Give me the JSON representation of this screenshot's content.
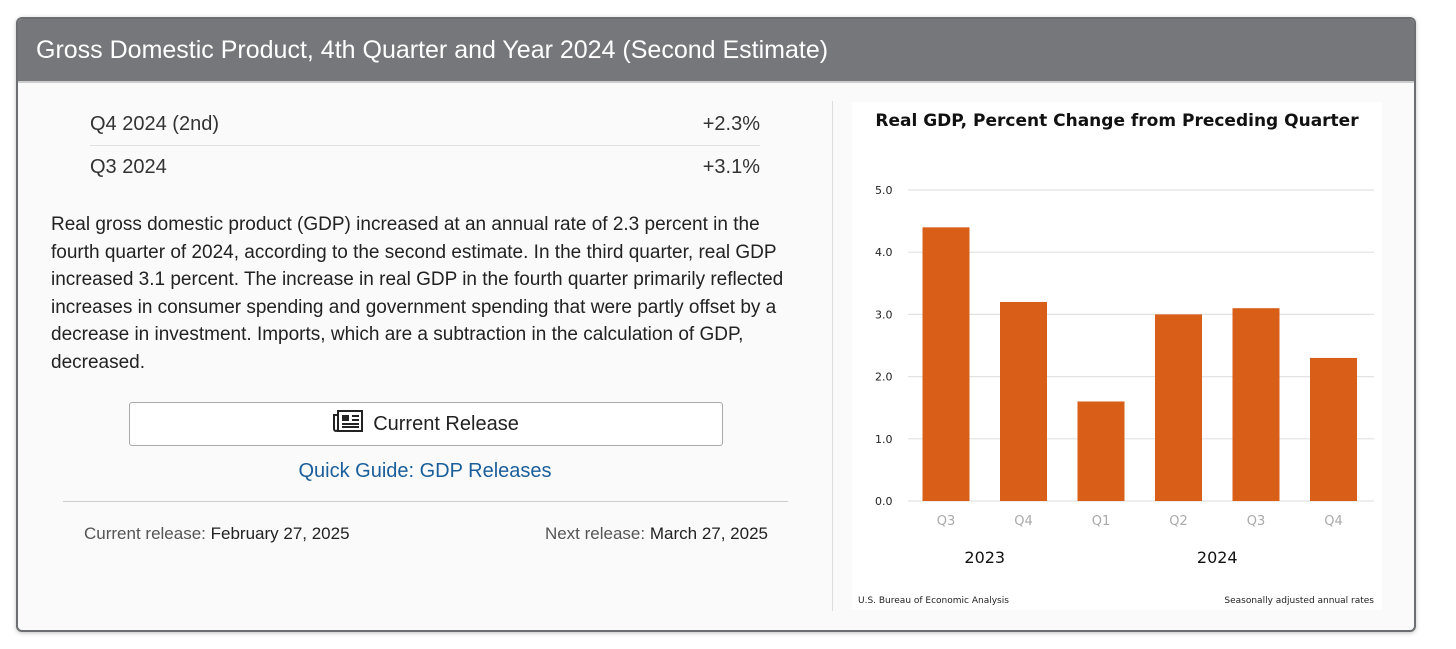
{
  "header": {
    "title": "Gross Domestic Product, 4th Quarter and Year 2024 (Second Estimate)"
  },
  "summary": [
    {
      "label": "Q4 2024 (2nd)",
      "value": "+2.3%"
    },
    {
      "label": "Q3 2024",
      "value": "+3.1%"
    }
  ],
  "description": "Real gross domestic product (GDP) increased at an annual rate of 2.3 percent in the fourth quarter of 2024, according to the second estimate. In the third quarter, real GDP increased 3.1 percent. The increase in real GDP in the fourth quarter primarily reflected increases in consumer spending and government spending that were partly offset by a decrease in investment. Imports, which are a subtraction in the calculation of GDP, decreased.",
  "actions": {
    "current_release": "Current Release",
    "current_release_icon": "newspaper-icon",
    "quick_guide": "Quick Guide: GDP Releases"
  },
  "releases": {
    "current_label": "Current release:",
    "current_date": "February 27, 2025",
    "next_label": "Next release:",
    "next_date": "March 27, 2025"
  },
  "chart_data": {
    "type": "bar",
    "title": "Real GDP, Percent Change from Preceding Quarter",
    "categories": [
      "Q3",
      "Q4",
      "Q1",
      "Q2",
      "Q3",
      "Q4"
    ],
    "groups": [
      {
        "label": "2023",
        "span": 2
      },
      {
        "label": "2024",
        "span": 4
      }
    ],
    "values": [
      4.4,
      3.2,
      1.6,
      3.0,
      3.1,
      2.3
    ],
    "yticks": [
      "0.0",
      "1.0",
      "2.0",
      "3.0",
      "4.0",
      "5.0"
    ],
    "ylim": [
      0,
      5
    ],
    "grid": true,
    "bar_color": "#d95f18",
    "source": "U.S. Bureau of Economic Analysis",
    "note": "Seasonally adjusted annual rates"
  }
}
